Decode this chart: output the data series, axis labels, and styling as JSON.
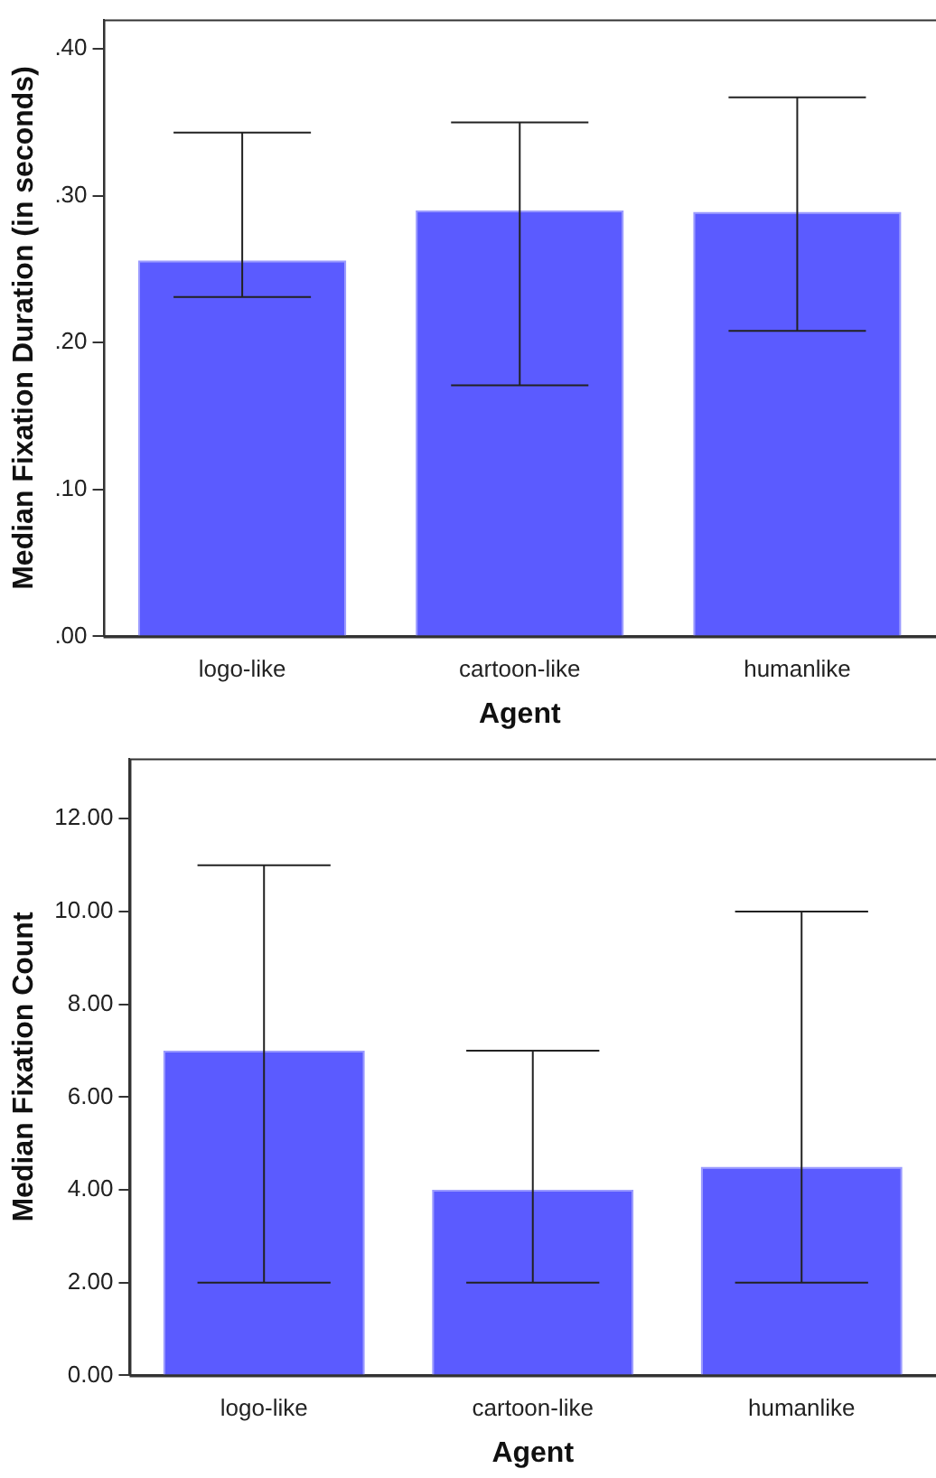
{
  "chart_data": [
    {
      "type": "bar",
      "categories": [
        "logo-like",
        "cartoon-like",
        "humanlike"
      ],
      "values": [
        0.256,
        0.29,
        0.289
      ],
      "errors": [
        [
          0.231,
          0.343
        ],
        [
          0.171,
          0.35
        ],
        [
          0.208,
          0.367
        ]
      ],
      "color": "#5b5bff",
      "xlabel": "Agent",
      "ylabel": "Median Fixation Duration (in seconds)",
      "ylim": [
        0,
        0.42
      ],
      "yticks": [
        {
          "value": 0,
          "label": ".00"
        },
        {
          "value": 0.1,
          "label": ".10"
        },
        {
          "value": 0.2,
          "label": ".20"
        },
        {
          "value": 0.3,
          "label": ".30"
        },
        {
          "value": 0.4,
          "label": ".40"
        }
      ],
      "grid": false,
      "legend": false
    },
    {
      "type": "bar",
      "categories": [
        "logo-like",
        "cartoon-like",
        "humanlike"
      ],
      "values": [
        7,
        4,
        4.5
      ],
      "errors": [
        [
          2,
          11
        ],
        [
          2,
          7
        ],
        [
          2,
          10
        ]
      ],
      "color": "#5b5bff",
      "xlabel": "Agent",
      "ylabel": "Median Fixation Count",
      "ylim": [
        0,
        13.3
      ],
      "yticks": [
        {
          "value": 0,
          "label": "0.00"
        },
        {
          "value": 2,
          "label": "2.00"
        },
        {
          "value": 4,
          "label": "4.00"
        },
        {
          "value": 6,
          "label": "6.00"
        },
        {
          "value": 8,
          "label": "8.00"
        },
        {
          "value": 10,
          "label": "10.00"
        },
        {
          "value": 12,
          "label": "12.00"
        }
      ],
      "grid": false,
      "legend": false
    }
  ]
}
